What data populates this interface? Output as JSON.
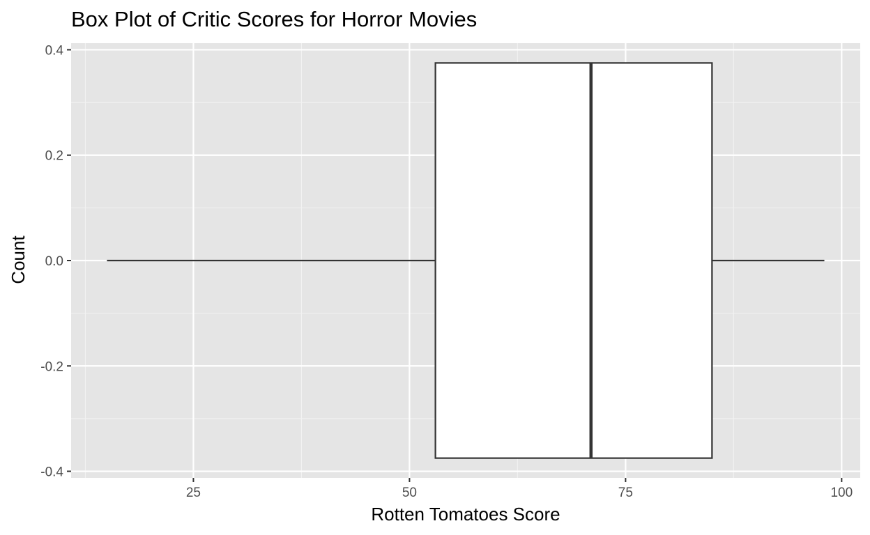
{
  "chart_data": {
    "type": "box",
    "title": "Box Plot of Critic Scores for Horror Movies",
    "xlabel": "Rotten Tomatoes Score",
    "ylabel": "Count",
    "xlim": [
      10.85,
      102.15
    ],
    "ylim": [
      -0.4125,
      0.4125
    ],
    "x_ticks": [
      25,
      50,
      75,
      100
    ],
    "x_tick_labels": [
      "25",
      "50",
      "75",
      "100"
    ],
    "x_minor_ticks": [
      12.5,
      37.5,
      62.5,
      87.5
    ],
    "y_ticks": [
      -0.4,
      -0.2,
      0.0,
      0.2,
      0.4
    ],
    "y_tick_labels": [
      "-0.4",
      "-0.2",
      "0.0",
      "0.2",
      "0.4"
    ],
    "y_minor_ticks": [
      -0.3,
      -0.1,
      0.1,
      0.3
    ],
    "grid": true,
    "boxes": [
      {
        "min": 15,
        "q1": 53,
        "median": 71,
        "q3": 85,
        "max": 98,
        "y_center": 0.0,
        "half_width": 0.375
      }
    ],
    "colors": {
      "panel_background": "#e5e5e5",
      "grid_major": "#ffffff",
      "grid_minor": "#f2f2f2",
      "box_fill": "#ffffff",
      "box_stroke": "#333333",
      "tick_mark": "#333333"
    }
  }
}
